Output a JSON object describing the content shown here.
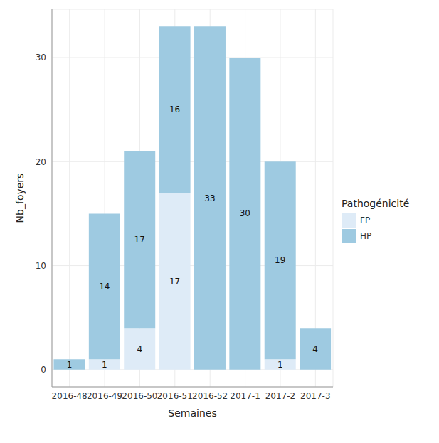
{
  "chart_data": {
    "type": "bar",
    "x_label": "Semaines",
    "y_label": "Nb_foyers",
    "legend_title": "Pathogénicité",
    "categories": [
      "2016-48",
      "2016-49",
      "2016-50",
      "2016-51",
      "2016-52",
      "2017-1",
      "2017-2",
      "2017-3"
    ],
    "series": [
      {
        "name": "FP",
        "color": "#deebf7",
        "values": [
          null,
          1,
          4,
          17,
          null,
          null,
          1,
          null
        ]
      },
      {
        "name": "HP",
        "color": "#9ecae1",
        "values": [
          1,
          14,
          17,
          16,
          33,
          30,
          19,
          4
        ]
      }
    ],
    "ylim": [
      -1.65,
      34.65
    ],
    "yticks": [
      0,
      10,
      20,
      30
    ],
    "grid": true,
    "stacked": true,
    "data_labels": true,
    "legend": "right"
  }
}
